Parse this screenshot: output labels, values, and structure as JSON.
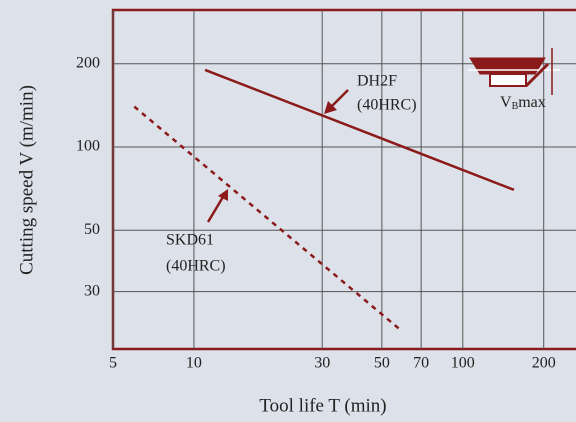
{
  "chart_data": {
    "type": "line",
    "x_label": "Tool life T (min)",
    "y_label": "Cutting speed V (m/min)",
    "xscale": "log",
    "yscale": "log",
    "grid": true,
    "xlim": [
      5,
      280
    ],
    "ylim": [
      18.6,
      313
    ],
    "xticks": [
      5,
      10,
      30,
      50,
      70,
      100,
      200
    ],
    "yticks": [
      30,
      50,
      100,
      200
    ],
    "series": [
      {
        "name": "DH2F",
        "note": "(40HRC)",
        "color": "#8b1a1a",
        "dash": false,
        "x": [
          11,
          155
        ],
        "values": [
          190,
          70
        ]
      },
      {
        "name": "SKD61",
        "note": "(40HRC)",
        "color": "#8b1a1a",
        "dash": true,
        "x": [
          6,
          58
        ],
        "values": [
          140,
          22
        ]
      }
    ],
    "icon_label": {
      "main": "V",
      "sub": "B",
      "tail": "max"
    }
  }
}
